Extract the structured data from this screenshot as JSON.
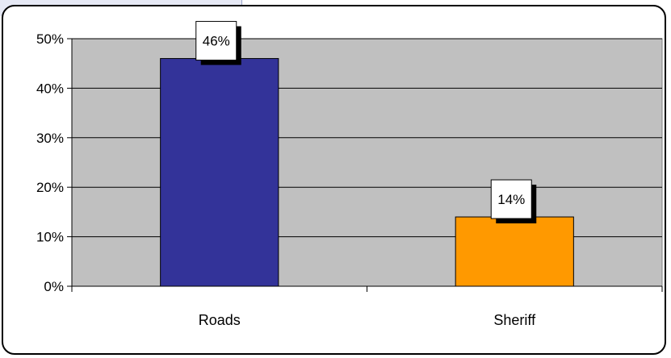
{
  "chart_data": {
    "type": "bar",
    "categories": [
      "Roads",
      "Sheriff"
    ],
    "values": [
      46,
      14
    ],
    "data_labels": [
      "46%",
      "14%"
    ],
    "title": "",
    "xlabel": "",
    "ylabel": "",
    "ylim": [
      0,
      50
    ],
    "yticks": [
      0,
      10,
      20,
      30,
      40,
      50
    ],
    "ytick_labels": [
      "0%",
      "10%",
      "20%",
      "30%",
      "40%",
      "50%"
    ],
    "grid": true,
    "legend": "none",
    "colors": [
      "#333399",
      "#ff9900"
    ],
    "plot_background": "#c0c0c0"
  }
}
